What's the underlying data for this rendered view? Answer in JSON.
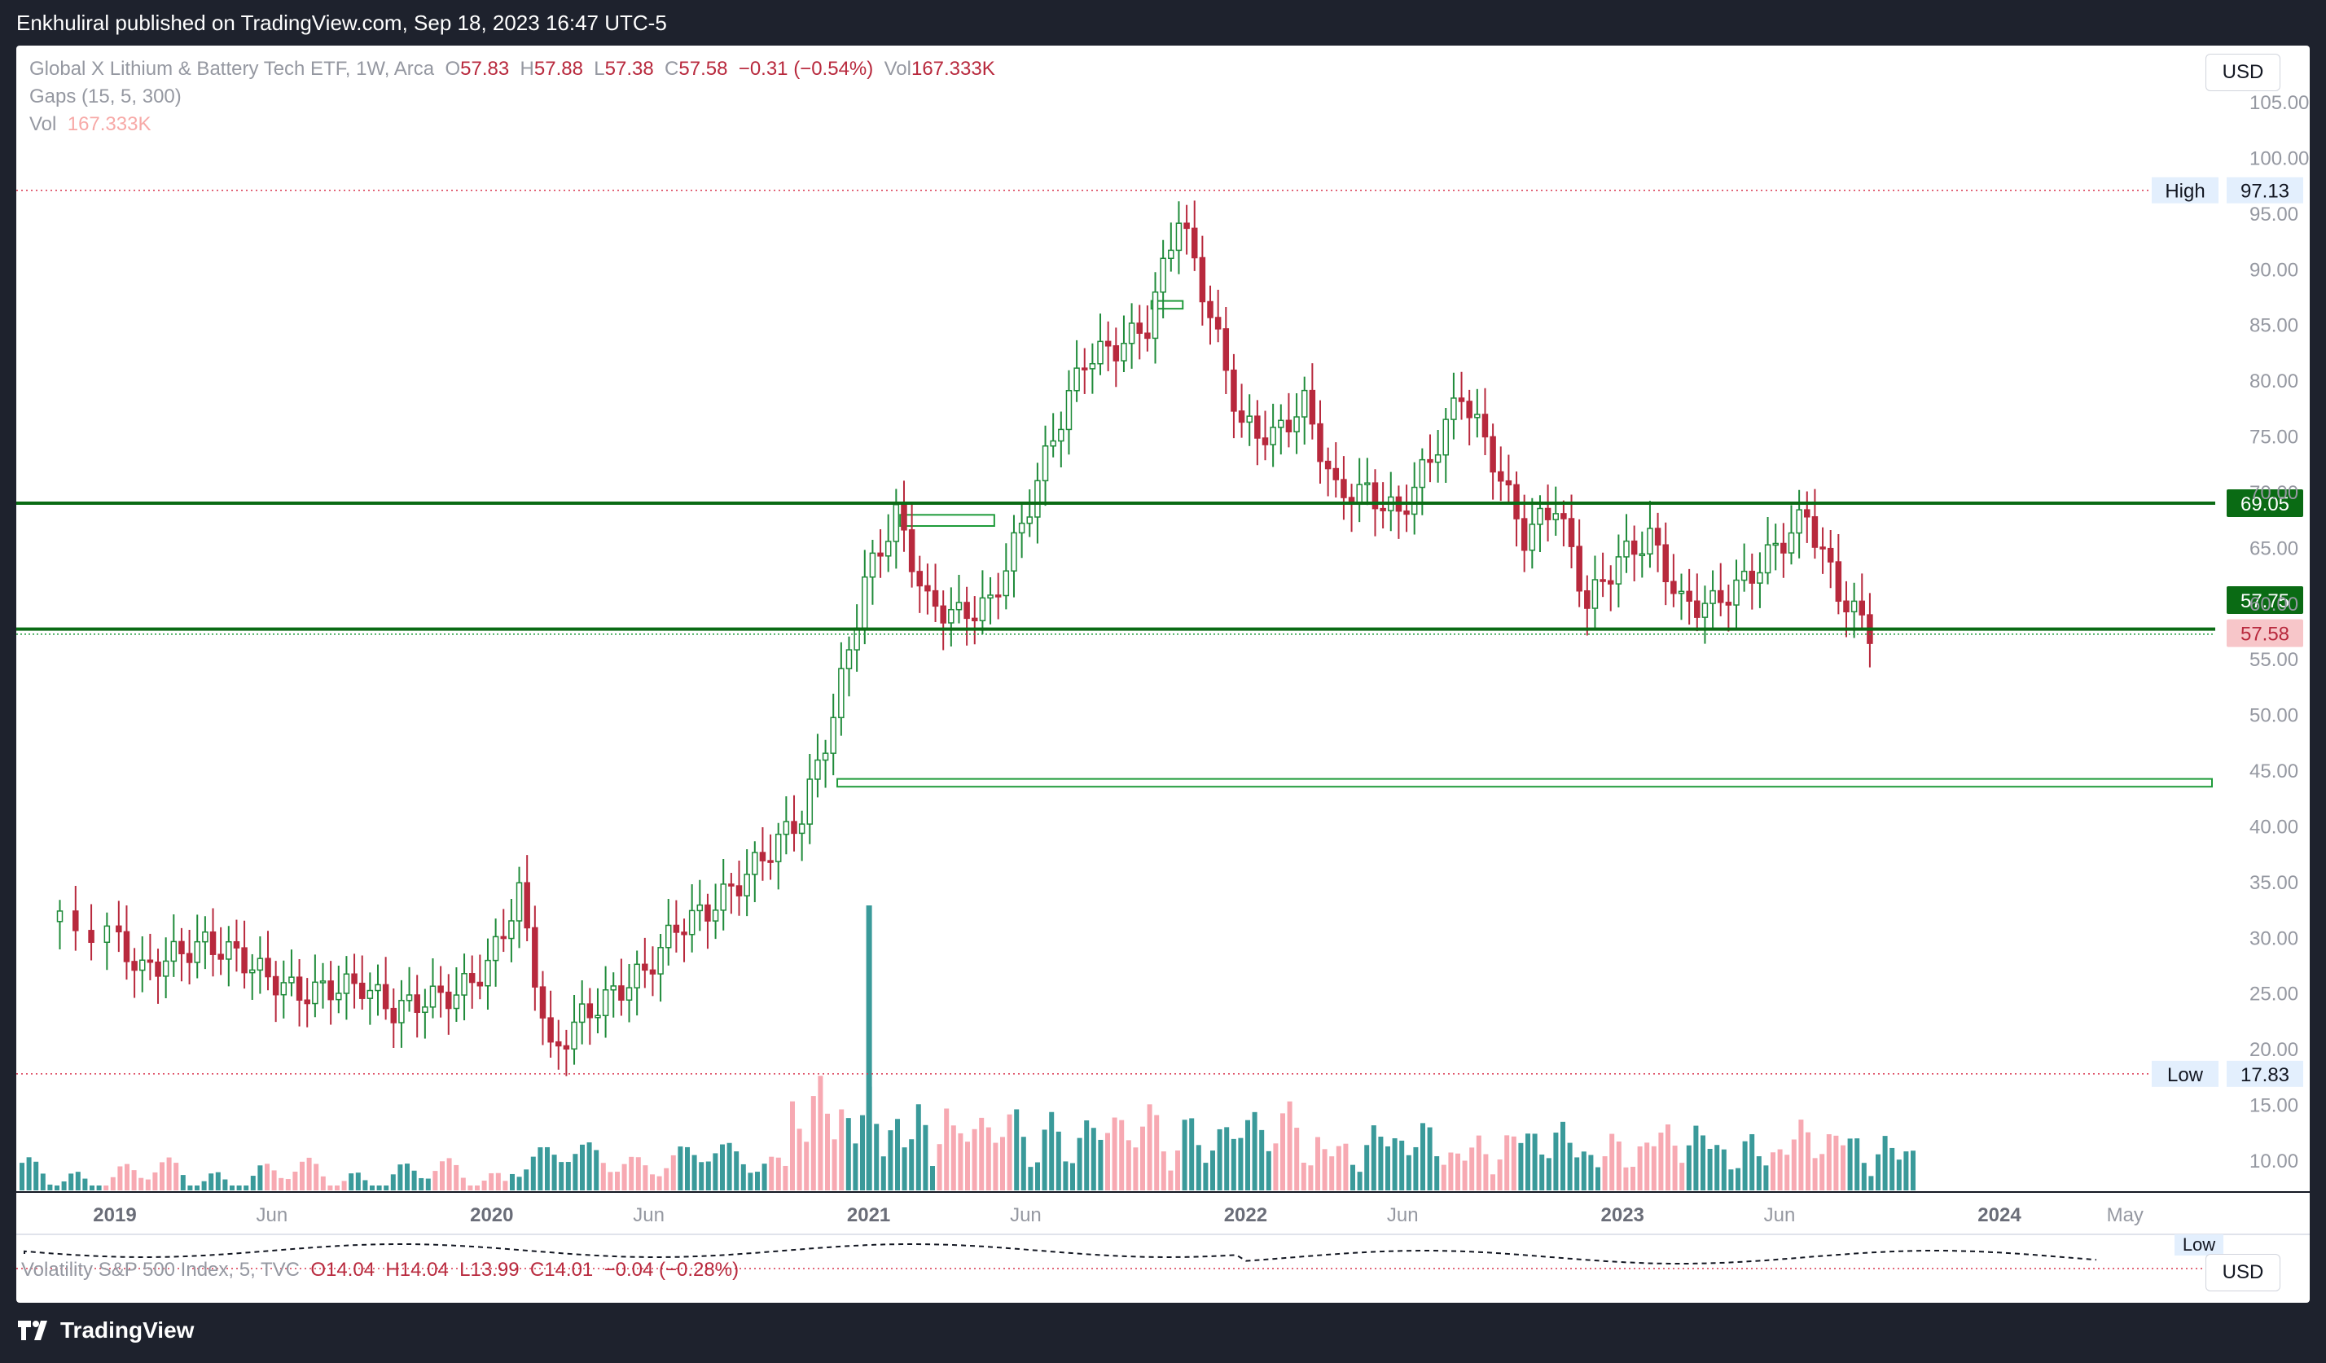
{
  "publisher_line": "Enkhuliral published on TradingView.com, Sep 18, 2023 16:47 UTC-5",
  "legend": {
    "symbol": "Global X Lithium & Battery Tech ETF, 1W, Arca",
    "o_label": "O",
    "o_value": "57.83",
    "h_label": "H",
    "h_value": "57.88",
    "l_label": "L",
    "l_value": "57.38",
    "c_label": "C",
    "c_value": "57.58",
    "change": "−0.31 (−0.54%)",
    "vol_label": "Vol",
    "vol_value": "167.333K",
    "gaps": "Gaps (15, 5, 300)",
    "vol2_label": "Vol",
    "vol2_value": "167.333K"
  },
  "currency_label": "USD",
  "price_axis": {
    "ticks": [
      "105.00",
      "100.00",
      "95.00",
      "90.00",
      "85.00",
      "80.00",
      "75.00",
      "70.00",
      "65.00",
      "60.00",
      "55.00",
      "50.00",
      "45.00",
      "40.00",
      "35.00",
      "30.00",
      "25.00",
      "20.00",
      "15.00",
      "10.00"
    ]
  },
  "time_axis": {
    "labels": [
      "2019",
      "Jun",
      "2020",
      "Jun",
      "2021",
      "Jun",
      "2022",
      "Jun",
      "2023",
      "Jun",
      "2024",
      "May"
    ]
  },
  "markers": {
    "high_label": "High",
    "high_value": "97.13",
    "low_label": "Low",
    "low_value": "17.83",
    "level1": "69.05",
    "level2": "57.75",
    "last": "57.58"
  },
  "sub_pane": {
    "title": "Volatility S&P 500 Index, 5, TVC",
    "o": "O14.04",
    "h": "H14.04",
    "l": "L13.99",
    "c": "C14.01",
    "change": "−0.04 (−0.28%)",
    "low_tag": "Low",
    "currency": "USD"
  },
  "brand": "TradingView",
  "colors": {
    "up": "#1f8b3a",
    "down": "#b8293d",
    "vol_up": "#3a9a9a",
    "vol_down": "#f7a9b2",
    "level": "#0a6b14",
    "last": "#f7c6c9"
  },
  "chart_data": {
    "type": "candlestick",
    "title": "Global X Lithium & Battery Tech ETF, 1W, Arca",
    "ylim": [
      15,
      107
    ],
    "y_ticks": [
      10,
      15,
      20,
      25,
      30,
      35,
      40,
      45,
      50,
      55,
      60,
      65,
      70,
      75,
      80,
      85,
      90,
      95,
      100,
      105
    ],
    "horizontal_levels": [
      69.05,
      57.75,
      57.58,
      97.13,
      17.83
    ],
    "gap_zones": [
      {
        "from": "2020-12",
        "to": "2023-09",
        "low": 43.6,
        "high": 44.3
      },
      {
        "from": "2021-02",
        "to": "2021-05",
        "low": 67.0,
        "high": 68.0
      },
      {
        "from": "2021-10",
        "to": "2021-11",
        "low": 86.5,
        "high": 87.2
      }
    ],
    "x_range": [
      "2018-11",
      "2024-06"
    ],
    "series": [
      {
        "points": [
          [
            "2018-11",
            31.5
          ],
          [
            "2019-01",
            30.5
          ],
          [
            "2019-02",
            27
          ],
          [
            "2019-03",
            28.5
          ],
          [
            "2019-04",
            29.5
          ],
          [
            "2019-05",
            28.5
          ],
          [
            "2019-06",
            26.5
          ],
          [
            "2019-07",
            25
          ],
          [
            "2019-08",
            25.5
          ],
          [
            "2019-09",
            25.8
          ],
          [
            "2019-10",
            23.5
          ],
          [
            "2019-11",
            24.5
          ],
          [
            "2019-12",
            25
          ],
          [
            "2020-01",
            27.5
          ],
          [
            "2020-02",
            34
          ],
          [
            "2020-03",
            19.5
          ],
          [
            "2020-04",
            23
          ],
          [
            "2020-05",
            25
          ],
          [
            "2020-06",
            27
          ],
          [
            "2020-07",
            31
          ],
          [
            "2020-08",
            32.5
          ],
          [
            "2020-09",
            35
          ],
          [
            "2020-10",
            38
          ],
          [
            "2020-11",
            41
          ],
          [
            "2020-12",
            50
          ],
          [
            "2021-01",
            62
          ],
          [
            "2021-02",
            68
          ],
          [
            "2021-03",
            60
          ],
          [
            "2021-04",
            59
          ],
          [
            "2021-05",
            60
          ],
          [
            "2021-06",
            67
          ],
          [
            "2021-07",
            75
          ],
          [
            "2021-08",
            82
          ],
          [
            "2021-09",
            83
          ],
          [
            "2021-10",
            85
          ],
          [
            "2021-11",
            95
          ],
          [
            "2021-12",
            86
          ],
          [
            "2022-01",
            76
          ],
          [
            "2022-02",
            75
          ],
          [
            "2022-03",
            78
          ],
          [
            "2022-04",
            70
          ],
          [
            "2022-05",
            70
          ],
          [
            "2022-06",
            68
          ],
          [
            "2022-07",
            73
          ],
          [
            "2022-08",
            79
          ],
          [
            "2022-09",
            73
          ],
          [
            "2022-10",
            66
          ],
          [
            "2022-11",
            69
          ],
          [
            "2022-12",
            60
          ],
          [
            "2023-01",
            64
          ],
          [
            "2023-02",
            66
          ],
          [
            "2023-03",
            60
          ],
          [
            "2023-04",
            60
          ],
          [
            "2023-05",
            62
          ],
          [
            "2023-06",
            65
          ],
          [
            "2023-07",
            68
          ],
          [
            "2023-08",
            61
          ],
          [
            "2023-09",
            57.58
          ]
        ]
      }
    ],
    "volume_peak": {
      "date": "2021-01",
      "value": "largest bar"
    }
  }
}
